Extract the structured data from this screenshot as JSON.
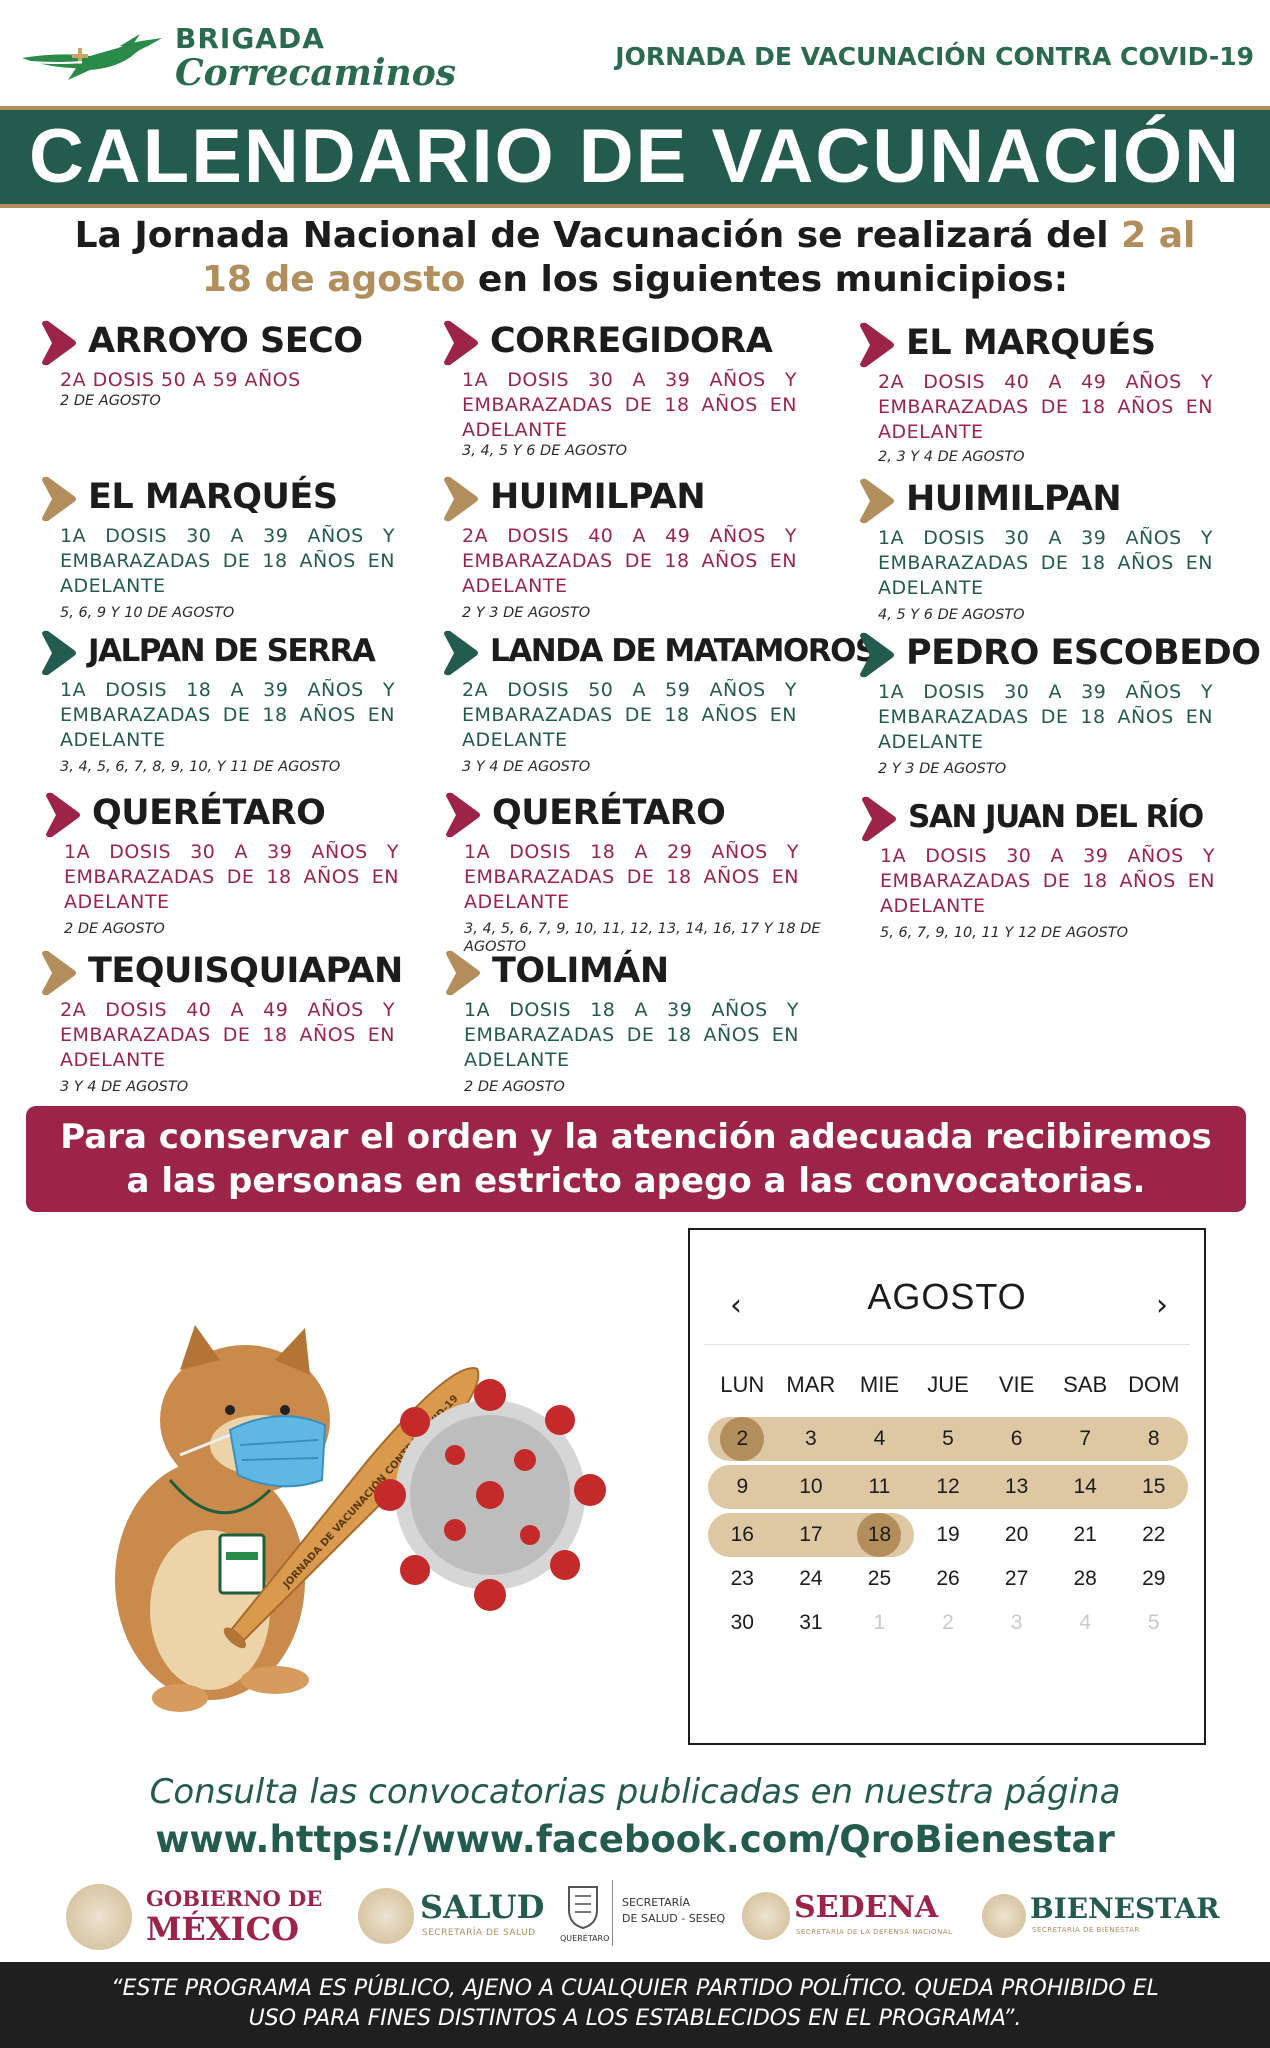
{
  "header": {
    "brand_top": "BRIGADA",
    "brand_bottom": "Correcaminos",
    "right_text": "JORNADA DE VACUNACIÓN CONTRA COVID-19"
  },
  "title": "CALENDARIO DE VACUNACIÓN",
  "intro": {
    "part1": "La Jornada Nacional de Vacunación se realizará del ",
    "highlight1": "2 al",
    "highlight2": "18 de agosto",
    "part2": " en los siguientes municipios:"
  },
  "municipalities": [
    {
      "name": "ARROYO SECO",
      "desc": "2A DOSIS 50 A 59 AÑOS",
      "dates": "2 DE AGOSTO",
      "color": "#9d2449"
    },
    {
      "name": "CORREGIDORA",
      "desc": "1A DOSIS 30 A 39 AÑOS Y EMBARAZADAS DE 18 AÑOS EN ADELANTE",
      "dates": "3, 4, 5 Y 6 DE AGOSTO",
      "color": "#9d2449"
    },
    {
      "name": "EL MARQUÉS",
      "desc": "2A DOSIS 40 A 49 AÑOS Y EMBARAZADAS DE 18 AÑOS EN ADELANTE",
      "dates": "2, 3 Y 4 DE AGOSTO",
      "color": "#9d2449"
    },
    {
      "name": "EL MARQUÉS",
      "desc": "1A DOSIS 30 A 39 AÑOS Y EMBARAZADAS DE 18 AÑOS EN ADELANTE",
      "dates": "5, 6, 9 Y 10 DE AGOSTO",
      "color": "#b38e5d"
    },
    {
      "name": "HUIMILPAN",
      "desc": "2A DOSIS 40 A 49 AÑOS Y EMBARAZADAS DE 18 AÑOS EN ADELANTE",
      "dates": "2 Y 3 DE AGOSTO",
      "color": "#b38e5d"
    },
    {
      "name": "HUIMILPAN",
      "desc": "1A DOSIS 30 A 39 AÑOS Y EMBARAZADAS DE 18 AÑOS EN ADELANTE",
      "dates": "4, 5 Y 6 DE AGOSTO",
      "color": "#b38e5d"
    },
    {
      "name": "JALPAN DE SERRA",
      "desc": "1A DOSIS 18 A 39 AÑOS Y EMBARAZADAS DE 18 AÑOS EN ADELANTE",
      "dates": "3, 4, 5, 6, 7, 8, 9, 10, Y 11 DE AGOSTO",
      "color": "#235b4e"
    },
    {
      "name": "LANDA DE MATAMOROS",
      "desc": "2A DOSIS 50 A 59 AÑOS Y EMBARAZADAS DE 18 AÑOS EN ADELANTE",
      "dates": "3 Y 4 DE AGOSTO",
      "color": "#235b4e"
    },
    {
      "name": "PEDRO ESCOBEDO",
      "desc": "1A DOSIS 30 A 39 AÑOS Y EMBARAZADAS DE 18 AÑOS EN ADELANTE",
      "dates": "2 Y 3 DE AGOSTO",
      "color": "#235b4e"
    },
    {
      "name": "QUERÉTARO",
      "desc": "1A DOSIS 30 A 39 AÑOS Y EMBARAZADAS DE 18 AÑOS EN ADELANTE",
      "dates": "2 DE AGOSTO",
      "color": "#9d2449"
    },
    {
      "name": "QUERÉTARO",
      "desc": "1A DOSIS 18 A 29 AÑOS Y EMBARAZADAS DE 18 AÑOS EN ADELANTE",
      "dates": "3, 4, 5, 6, 7, 9, 10, 11, 12, 13, 14, 16, 17 Y 18 DE AGOSTO",
      "color": "#9d2449"
    },
    {
      "name": "SAN JUAN DEL RÍO",
      "desc": "1A DOSIS 30 A 39 AÑOS Y EMBARAZADAS DE 18 AÑOS EN ADELANTE",
      "dates": "5, 6, 7, 9, 10, 11 Y 12 DE AGOSTO",
      "color": "#9d2449"
    },
    {
      "name": "TEQUISQUIAPAN",
      "desc": "2A DOSIS 40 A 49 AÑOS Y EMBARAZADAS DE 18 AÑOS EN ADELANTE",
      "dates": "3 Y 4 DE AGOSTO",
      "color": "#b38e5d"
    },
    {
      "name": "TOLIMÁN",
      "desc": "1A DOSIS 18 A 39 AÑOS Y EMBARAZADAS DE 18 AÑOS EN ADELANTE",
      "dates": "2 DE AGOSTO",
      "color": "#b38e5d"
    }
  ],
  "notice": {
    "line1": "Para conservar el orden y la atención adecuada recibiremos",
    "line2": "a las personas en estricto apego a las convocatorias."
  },
  "illustration": {
    "bat_text": "JORNADA DE VACUNACIÓN CONTRA COVID-19"
  },
  "calendar": {
    "month": "AGOSTO",
    "prev_icon": "‹",
    "next_icon": "›",
    "weekdays": [
      "LUN",
      "MAR",
      "MIE",
      "JUE",
      "VIE",
      "SAB",
      "DOM"
    ],
    "weeks": [
      [
        "2",
        "3",
        "4",
        "5",
        "6",
        "7",
        "8"
      ],
      [
        "9",
        "10",
        "11",
        "12",
        "13",
        "14",
        "15"
      ],
      [
        "16",
        "17",
        "18",
        "19",
        "20",
        "21",
        "22"
      ],
      [
        "23",
        "24",
        "25",
        "26",
        "27",
        "28",
        "29"
      ],
      [
        "30",
        "31",
        "1",
        "2",
        "3",
        "4",
        "5"
      ]
    ],
    "range_start": "2",
    "range_end": "18"
  },
  "footer": {
    "consulta": "Consulta las convocatorias publicadas en nuestra página",
    "url": "www.https://www.facebook.com/QroBienestar",
    "logos": {
      "gob_line1": "GOBIERNO DE",
      "gob_line2": "MÉXICO",
      "salud": "SALUD",
      "salud_sub": "SECRETARÍA DE SALUD",
      "queretaro": "QUERÉTARO",
      "seseq_line1": "SECRETARÍA",
      "seseq_line2": "DE SALUD - SESEQ",
      "sedena": "SEDENA",
      "sedena_sub": "SECRETARÍA DE LA DEFENSA NACIONAL",
      "bienestar": "BIENESTAR",
      "bienestar_sub": "SECRETARÍA DE BIENESTAR"
    },
    "disclaimer_line1": "“ESTE PROGRAMA ES PÚBLICO, AJENO A CUALQUIER PARTIDO POLÍTICO. QUEDA PROHIBIDO EL",
    "disclaimer_line2": "USO PARA FINES DISTINTOS A LOS ESTABLECIDOS EN EL PROGRAMA”."
  }
}
